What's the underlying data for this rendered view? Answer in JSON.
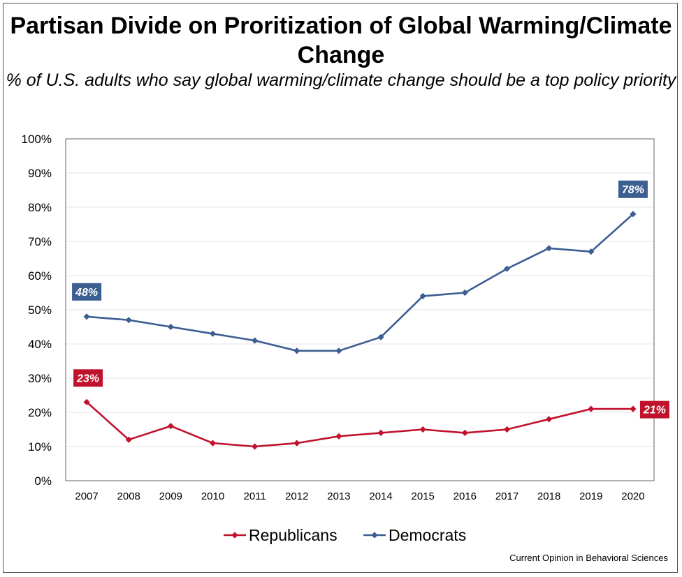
{
  "chart_data": {
    "type": "line",
    "title": "Partisan Divide on Proritization of Global Warming/Climate Change",
    "subtitle": "% of U.S. adults who say global warming/climate change should be a top policy priority",
    "source": "Current Opinion in Behavioral Sciences",
    "x": [
      "2007",
      "2008",
      "2009",
      "2010",
      "2011",
      "2012",
      "2013",
      "2014",
      "2015",
      "2016",
      "2017",
      "2018",
      "2019",
      "2020"
    ],
    "y_ticks": [
      "0%",
      "10%",
      "20%",
      "30%",
      "40%",
      "50%",
      "60%",
      "70%",
      "80%",
      "90%",
      "100%"
    ],
    "ylim": [
      0,
      100
    ],
    "grid": true,
    "legend_position": "bottom",
    "series": [
      {
        "name": "Republicans",
        "color": "#c0122c",
        "values": [
          23,
          12,
          16,
          11,
          10,
          11,
          13,
          14,
          15,
          14,
          15,
          18,
          21,
          21
        ]
      },
      {
        "name": "Democrats",
        "color": "#3c5e91",
        "values": [
          48,
          47,
          45,
          43,
          41,
          38,
          38,
          42,
          54,
          55,
          62,
          68,
          67,
          78
        ]
      }
    ],
    "annotations": [
      {
        "series": 1,
        "index": 0,
        "text": "48%",
        "color": "#3c5e91"
      },
      {
        "series": 1,
        "index": 13,
        "text": "78%",
        "color": "#3c5e91"
      },
      {
        "series": 0,
        "index": 0,
        "text": "23%",
        "color": "#c0122c"
      },
      {
        "series": 0,
        "index": 13,
        "text": "21%",
        "color": "#c0122c"
      }
    ]
  }
}
